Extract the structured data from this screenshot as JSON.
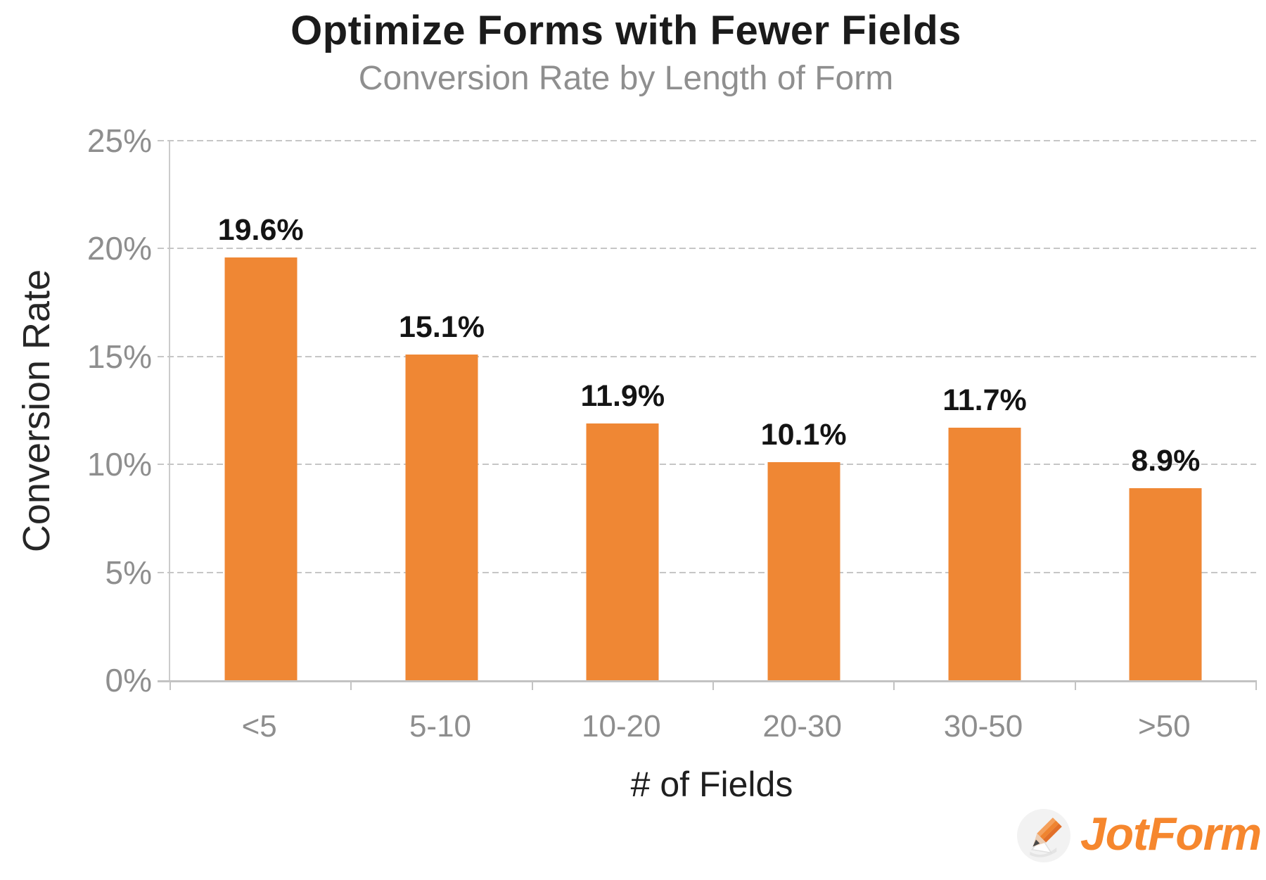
{
  "chart_data": {
    "type": "bar",
    "title": "Optimize Forms with Fewer Fields",
    "subtitle": "Conversion Rate by Length of Form",
    "xlabel": "# of Fields",
    "ylabel": "Conversion Rate",
    "categories": [
      "<5",
      "5-10",
      "10-20",
      "20-30",
      "30-50",
      ">50"
    ],
    "values": [
      19.6,
      15.1,
      11.9,
      10.1,
      11.7,
      8.9
    ],
    "value_labels": [
      "19.6%",
      "15.1%",
      "11.9%",
      "10.1%",
      "11.7%",
      "8.9%"
    ],
    "ylim": [
      0,
      25
    ],
    "yticks": [
      {
        "value": 0,
        "label": "0%"
      },
      {
        "value": 5,
        "label": "5%"
      },
      {
        "value": 10,
        "label": "10%"
      },
      {
        "value": 15,
        "label": "15%"
      },
      {
        "value": 20,
        "label": "20%"
      },
      {
        "value": 25,
        "label": "25%"
      }
    ],
    "grid": "horizontal-dashed",
    "legend": "none",
    "bar_color": "#EF8734"
  },
  "branding": {
    "logo_text": "JotForm",
    "logo_icon": "pencil-icon",
    "logo_color": "#F6872E"
  },
  "colors": {
    "bar": "#EF8734",
    "grid": "#C6C6C6",
    "axis": "#C9C9C9",
    "tick_text": "#8E8E8E",
    "title_text": "#1B1B1B",
    "subtitle_text": "#8F8F8F",
    "value_text": "#141414",
    "logo_orange": "#F6872E"
  }
}
